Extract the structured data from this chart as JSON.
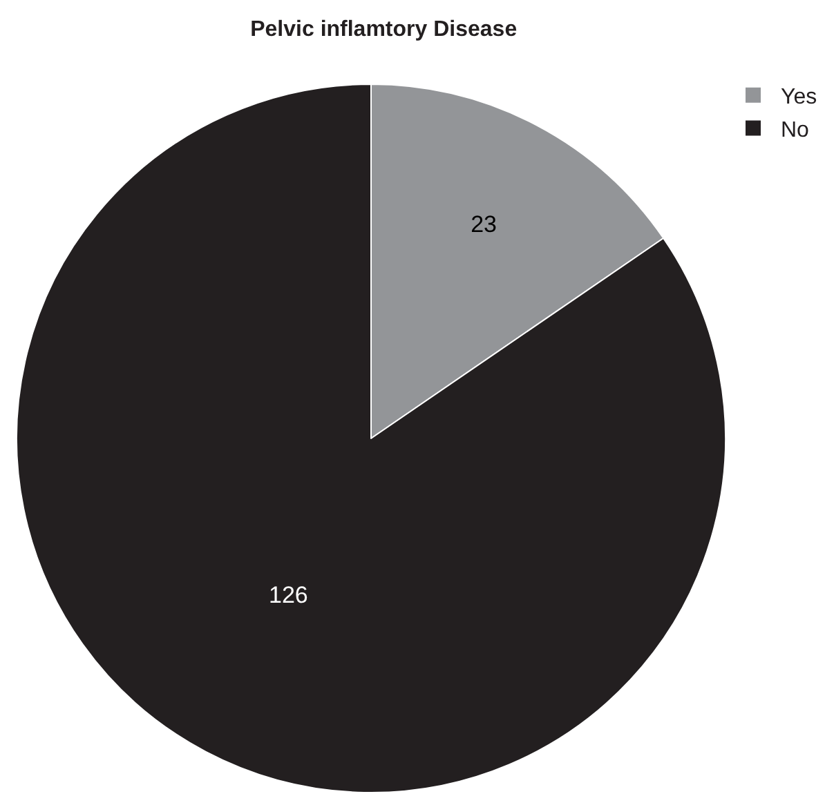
{
  "chart_data": {
    "type": "pie",
    "title": "Pelvic inflamtory Disease",
    "categories": [
      "Yes",
      "No"
    ],
    "values": [
      23,
      126
    ],
    "colors": [
      "#939598",
      "#231f20"
    ],
    "data_labels": true,
    "legend": "top right"
  }
}
